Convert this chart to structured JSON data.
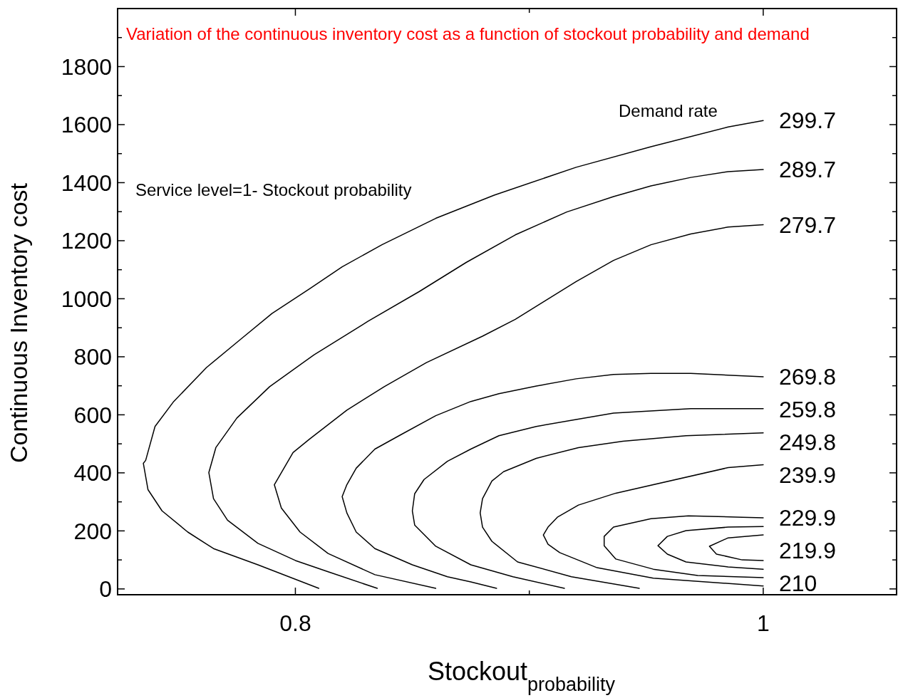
{
  "chart_data": {
    "type": "line",
    "title": "Variation of the continuous inventory cost as a function of stockout probability and demand",
    "xlabel": "Stockout$_{probability}$",
    "ylabel": "Continuous Inventory cost",
    "annotations": [
      "Service level=1- Stockout probability",
      "Demand rate"
    ],
    "xlim": [
      0.724,
      1.057
    ],
    "ylim": [
      -20,
      2000
    ],
    "xticks": [
      0.8,
      {
        "value": 0.9,
        "label": null
      },
      1
    ],
    "yticks": [
      0,
      {
        "value": 100,
        "label": null
      },
      200,
      {
        "value": 300,
        "label": null
      },
      400,
      {
        "value": 500,
        "label": null
      },
      600,
      {
        "value": 700,
        "label": null
      },
      800,
      {
        "value": 900,
        "label": null
      },
      1000,
      {
        "value": 1100,
        "label": null
      },
      1200,
      {
        "value": 1300,
        "label": null
      },
      1400,
      {
        "value": 1500,
        "label": null
      },
      1600,
      {
        "value": 1700,
        "label": null
      },
      1800,
      {
        "value": 1900,
        "label": null
      }
    ],
    "legend": "right",
    "grid": false,
    "marker": "none",
    "line_style": "solid",
    "series": [
      {
        "name": "299.7",
        "color": "#000000",
        "x": [
          1.0,
          0.985,
          0.952,
          0.92,
          0.885,
          0.86,
          0.837,
          0.82,
          0.806,
          0.79,
          0.777,
          0.762,
          0.748,
          0.74,
          0.736,
          0.735,
          0.737,
          0.743,
          0.754,
          0.765,
          0.784,
          0.81
        ],
        "values": [
          1614,
          1592,
          1524,
          1453,
          1357,
          1277,
          1186,
          1110,
          1034,
          949,
          863,
          763,
          646,
          560,
          443,
          433,
          342,
          269,
          196,
          139,
          83,
          2
        ]
      },
      {
        "name": "289.7",
        "color": "#000000",
        "x": [
          1.0,
          0.985,
          0.969,
          0.952,
          0.936,
          0.916,
          0.894,
          0.873,
          0.853,
          0.831,
          0.808,
          0.789,
          0.775,
          0.766,
          0.763,
          0.765,
          0.771,
          0.784,
          0.8,
          0.814,
          0.835
        ],
        "values": [
          1445,
          1438,
          1418,
          1389,
          1352,
          1299,
          1220,
          1125,
          1025,
          922,
          807,
          697,
          589,
          487,
          401,
          311,
          237,
          157,
          98,
          59,
          2
        ]
      },
      {
        "name": "279.7",
        "color": "#000000",
        "x": [
          1.0,
          0.985,
          0.969,
          0.952,
          0.936,
          0.92,
          0.9,
          0.894,
          0.88,
          0.856,
          0.838,
          0.822,
          0.806,
          0.799,
          0.791,
          0.794,
          0.802,
          0.814,
          0.834,
          0.86
        ],
        "values": [
          1255,
          1247,
          1223,
          1186,
          1132,
          1059,
          959,
          929,
          871,
          780,
          697,
          616,
          516,
          470,
          359,
          279,
          196,
          122,
          49,
          2
        ]
      },
      {
        "name": "269.8",
        "color": "#000000",
        "x": [
          1.0,
          0.969,
          0.952,
          0.936,
          0.92,
          0.903,
          0.887,
          0.875,
          0.86,
          0.845,
          0.834,
          0.826,
          0.822,
          0.82,
          0.822,
          0.826,
          0.834,
          0.85,
          0.865,
          0.875,
          0.886
        ],
        "values": [
          731,
          743,
          743,
          739,
          724,
          699,
          673,
          646,
          597,
          531,
          482,
          416,
          359,
          318,
          262,
          196,
          139,
          83,
          42,
          24,
          2
        ]
      },
      {
        "name": "259.8",
        "color": "#000000",
        "x": [
          1.0,
          0.969,
          0.936,
          0.92,
          0.903,
          0.887,
          0.875,
          0.865,
          0.855,
          0.851,
          0.85,
          0.851,
          0.86,
          0.875,
          0.893,
          0.915
        ],
        "values": [
          621,
          621,
          606,
          584,
          560,
          528,
          482,
          440,
          377,
          328,
          269,
          220,
          147,
          83,
          42,
          2
        ]
      },
      {
        "name": "249.8",
        "color": "#000000",
        "x": [
          1.0,
          0.967,
          0.94,
          0.921,
          0.903,
          0.889,
          0.884,
          0.88,
          0.879,
          0.88,
          0.884,
          0.895,
          0.918,
          0.947
        ],
        "values": [
          538,
          528,
          509,
          487,
          450,
          404,
          372,
          311,
          262,
          213,
          164,
          93,
          42,
          2
        ]
      },
      {
        "name": "239.9",
        "color": "#000000",
        "x": [
          1.0,
          0.985,
          0.937,
          0.921,
          0.912,
          0.908,
          0.906,
          0.908,
          0.913,
          0.929,
          0.953,
          1.0
        ],
        "values": [
          428,
          418,
          330,
          289,
          247,
          213,
          186,
          154,
          125,
          73,
          37,
          10
        ]
      },
      {
        "name": "229.9",
        "color": "#000000",
        "x": [
          1.0,
          0.991,
          0.968,
          0.952,
          0.936,
          0.932,
          0.932,
          0.937,
          0.953,
          0.972,
          1.0
        ],
        "values": [
          245,
          247,
          252,
          242,
          213,
          181,
          149,
          103,
          68,
          46,
          39
        ]
      },
      {
        "name": "219.9",
        "color": "#000000",
        "x": [
          1.0,
          0.985,
          0.967,
          0.959,
          0.955,
          0.959,
          0.967,
          0.985,
          1.0
        ],
        "values": [
          215,
          213,
          201,
          181,
          149,
          120,
          93,
          76,
          68
        ]
      },
      {
        "name": "210",
        "color": "#000000",
        "x": [
          1.0,
          0.985,
          0.977,
          0.98,
          0.991,
          1.0
        ],
        "values": [
          186,
          176,
          147,
          120,
          100,
          98
        ]
      }
    ]
  }
}
